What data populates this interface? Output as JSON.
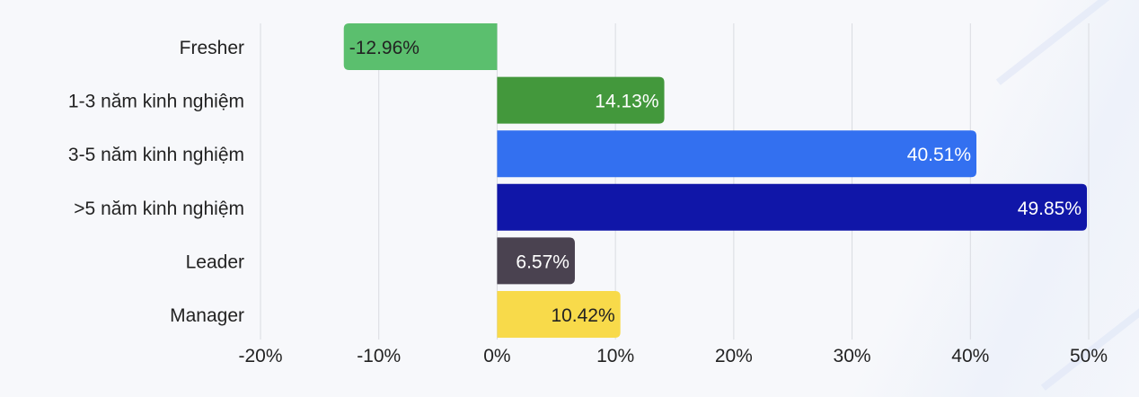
{
  "chart_data": {
    "type": "bar",
    "orientation": "horizontal",
    "title": "",
    "xlabel": "",
    "ylabel": "",
    "xlim": [
      -20,
      50
    ],
    "grid": "vertical",
    "categories": [
      "Fresher",
      "1-3 năm kinh nghiệm",
      "3-5 năm kinh nghiệm",
      ">5 năm kinh nghiệm",
      "Leader",
      "Manager"
    ],
    "values": [
      -12.96,
      14.13,
      40.51,
      49.85,
      6.57,
      10.42
    ],
    "data_labels": [
      "-12.96%",
      "14.13%",
      "40.51%",
      "49.85%",
      "6.57%",
      "10.42%"
    ],
    "colors": [
      "#5bbf6e",
      "#43983c",
      "#3370f0",
      "#1016a8",
      "#4a4250",
      "#f8da4a"
    ],
    "label_colors": [
      "#222222",
      "#ffffff",
      "#ffffff",
      "#ffffff",
      "#ffffff",
      "#222222"
    ],
    "ticks": [
      -20,
      -10,
      0,
      10,
      20,
      30,
      40,
      50
    ],
    "tick_labels": [
      "-20%",
      "-10%",
      "0%",
      "10%",
      "20%",
      "30%",
      "40%",
      "50%"
    ]
  }
}
